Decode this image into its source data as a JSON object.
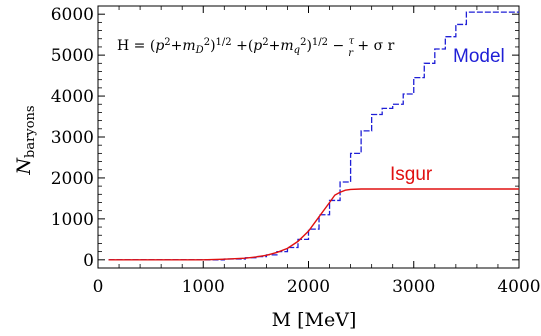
{
  "chart_data": {
    "type": "line",
    "xlabel": "M [MeV]",
    "ylabel": {
      "main": "N",
      "sub": "baryons"
    },
    "xlim": [
      0,
      4000
    ],
    "ylim": [
      -200,
      6200
    ],
    "xticks": [
      0,
      1000,
      2000,
      3000,
      4000
    ],
    "yticks": [
      0,
      1000,
      2000,
      3000,
      4000,
      5000,
      6000
    ],
    "annotation": {
      "parts": [
        "H = (",
        "p",
        "2",
        "+",
        "m",
        "D",
        "2",
        ")",
        "1/2",
        " +(",
        "p",
        "2",
        "+",
        "m",
        "q",
        "2",
        ")",
        "1/2",
        " − ",
        "τ",
        "r",
        " + σ r"
      ]
    },
    "series": [
      {
        "name": "Model",
        "color": "#1f1fd6",
        "style": "step-dashed",
        "x": [
          100,
          1000,
          1200,
          1400,
          1500,
          1600,
          1700,
          1800,
          1900,
          2000,
          2100,
          2200,
          2300,
          2400,
          2500,
          2600,
          2700,
          2800,
          2900,
          3000,
          3100,
          3200,
          3300,
          3400,
          3500,
          3600,
          4000
        ],
        "y": [
          0,
          0,
          20,
          50,
          80,
          120,
          200,
          300,
          500,
          750,
          1100,
          1450,
          1900,
          2600,
          3150,
          3550,
          3700,
          3800,
          4050,
          4450,
          4800,
          5150,
          5450,
          5750,
          6050,
          6050,
          6050
        ]
      },
      {
        "name": "Isgur",
        "color": "#e01010",
        "style": "solid",
        "x": [
          100,
          1000,
          1200,
          1400,
          1500,
          1600,
          1700,
          1800,
          1900,
          2000,
          2100,
          2200,
          2250,
          2300,
          2350,
          2400,
          2500,
          3000,
          4000
        ],
        "y": [
          0,
          0,
          15,
          40,
          70,
          110,
          180,
          280,
          450,
          700,
          1050,
          1400,
          1580,
          1650,
          1700,
          1720,
          1730,
          1730,
          1730
        ]
      }
    ]
  }
}
